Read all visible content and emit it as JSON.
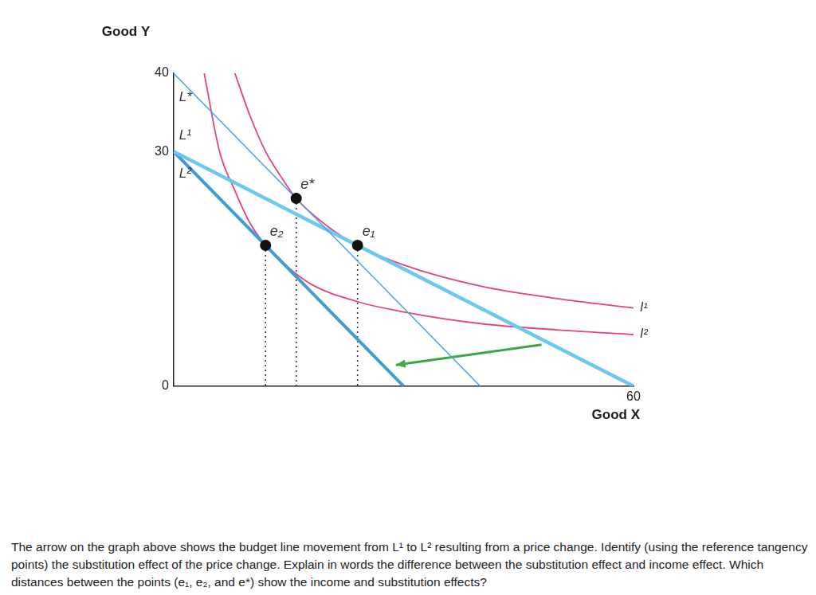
{
  "chart_data": {
    "type": "line",
    "x_label": "Good X",
    "y_label": "Good Y",
    "xlim": [
      0,
      60
    ],
    "ylim": [
      0,
      40
    ],
    "xticks": [
      60
    ],
    "yticks": [
      0,
      30,
      40
    ],
    "grid": false,
    "series": [
      {
        "name": "L*",
        "type": "line",
        "color": "#4aa6dc",
        "line_style": "solid",
        "x": [
          0,
          40
        ],
        "values": [
          40,
          0
        ]
      },
      {
        "name": "L¹",
        "type": "line",
        "color": "#6cc8ee",
        "line_style": "solid",
        "x": [
          0,
          60
        ],
        "values": [
          30,
          0
        ]
      },
      {
        "name": "L²",
        "type": "line",
        "color": "#3f9cd6",
        "line_style": "solid",
        "x": [
          0,
          30
        ],
        "values": [
          30,
          0
        ]
      },
      {
        "name": "I¹",
        "type": "line",
        "color": "#e5427f",
        "line_style": "solid",
        "x": [
          8,
          10,
          12,
          14,
          16,
          20,
          24,
          30,
          40,
          50,
          60
        ],
        "values": [
          40,
          34.5,
          30,
          26.8,
          24,
          20.5,
          18,
          15.5,
          12.8,
          11.2,
          10
        ]
      },
      {
        "name": "I²",
        "type": "line",
        "color": "#e5427f",
        "line_style": "solid",
        "x": [
          4,
          6,
          8,
          10,
          12,
          14,
          18,
          24,
          30,
          40,
          50,
          60
        ],
        "values": [
          40,
          30,
          25,
          20.8,
          18,
          16,
          13,
          10.8,
          9.5,
          8,
          7.2,
          6.6
        ]
      },
      {
        "type": "arrow",
        "color": "#3aa845",
        "line_style": "solid",
        "x": [
          48,
          29
        ],
        "values": [
          5.3,
          2.7
        ]
      },
      {
        "name": "e*",
        "type": "scatter",
        "color": "#111111",
        "marker": "circle",
        "x": [
          16
        ],
        "values": [
          24
        ]
      },
      {
        "name": "e₁",
        "type": "scatter",
        "color": "#111111",
        "marker": "circle",
        "x": [
          24
        ],
        "values": [
          18
        ]
      },
      {
        "name": "e₂",
        "type": "scatter",
        "color": "#111111",
        "marker": "circle",
        "x": [
          12
        ],
        "values": [
          18
        ]
      }
    ],
    "caption": "The arrow on the graph above shows the budget line movement from L¹ to L² resulting from a price change. Identify (using the reference tangency points) the substitution effect of the price change. Explain in words the difference between the substitution effect and income effect. Which distances between the points (e₁, e₂, and e*) show the income and substitution effects?"
  }
}
